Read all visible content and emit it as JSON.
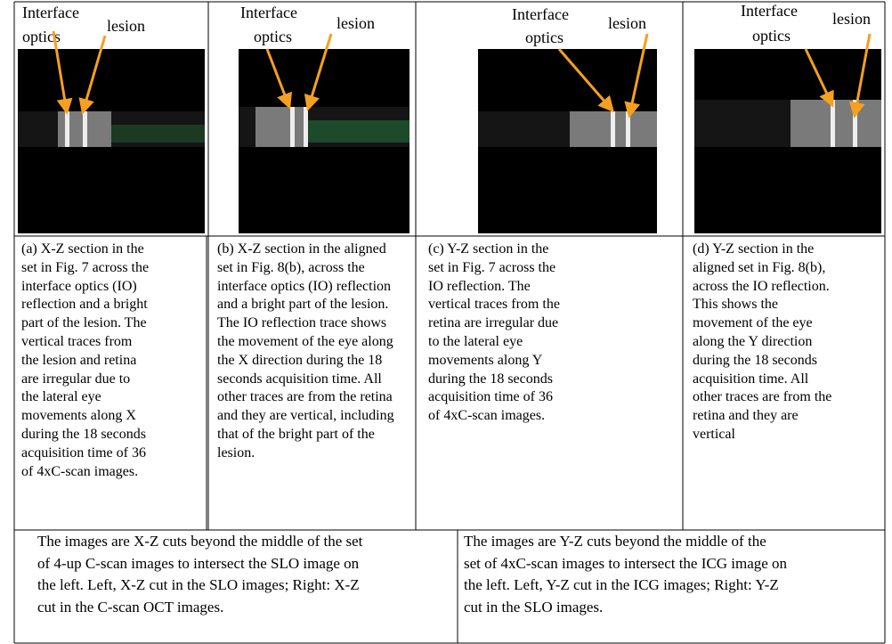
{
  "panels": [
    {
      "io_label": [
        "Interface",
        "optics"
      ],
      "lesion_label": "lesion",
      "caption": [
        "(a) X-Z section  in the",
        "set in Fig. 7 across the",
        "interface optics (IO)",
        "reflection and a bright",
        "part of the lesion. The",
        "vertical traces from",
        "the lesion and retina",
        "are irregular due to",
        "the lateral eye",
        "movements along X",
        "during the 18 seconds",
        "acquisition time of 36",
        "of 4xC-scan images."
      ]
    },
    {
      "io_label": [
        "Interface",
        "optics"
      ],
      "lesion_label": "lesion",
      "caption": [
        "(b) X-Z section in the aligned",
        "set in Fig. 8(b), across the",
        "interface optics (IO) reflection",
        "and a bright part of the lesion.",
        "The IO reflection trace shows",
        "the movement of the eye along",
        "the X direction during the 18",
        "seconds acquisition time. All",
        "other traces are from the retina",
        "and they are vertical, including",
        "that of the bright part of the",
        "lesion."
      ]
    },
    {
      "io_label": [
        "Interface",
        "optics"
      ],
      "lesion_label": "lesion",
      "caption": [
        "(c) Y-Z section in the",
        "set in Fig. 7 across the",
        "IO reflection. The",
        "vertical traces from the",
        "retina are irregular due",
        "to the lateral eye",
        "movements along Y",
        "during the 18 seconds",
        "acquisition time of 36",
        "of 4xC-scan images."
      ]
    },
    {
      "io_label": [
        "Interface",
        "optics"
      ],
      "lesion_label": "lesion",
      "caption": [
        "(d) Y-Z section in the",
        "aligned set in Fig. 8(b),",
        "across the IO reflection.",
        "This shows the",
        "movement of the eye",
        "along the Y direction",
        "during the 18 seconds",
        "acquisition time. All",
        "other traces are from the",
        "retina and they are",
        "vertical"
      ]
    }
  ],
  "footer": [
    [
      "The images are X-Z cuts beyond the middle of the set",
      "of 4-up C-scan images to intersect the SLO image on",
      "the left. Left, X-Z cut in the SLO images; Right: X-Z",
      "cut in the C-scan OCT images."
    ],
    [
      "The images are Y-Z cuts beyond the middle of the",
      "set of 4xC-scan images to intersect the ICG image on",
      "the left. Left, Y-Z cut in the ICG images; Right: Y-Z",
      "cut in the SLO images."
    ]
  ]
}
